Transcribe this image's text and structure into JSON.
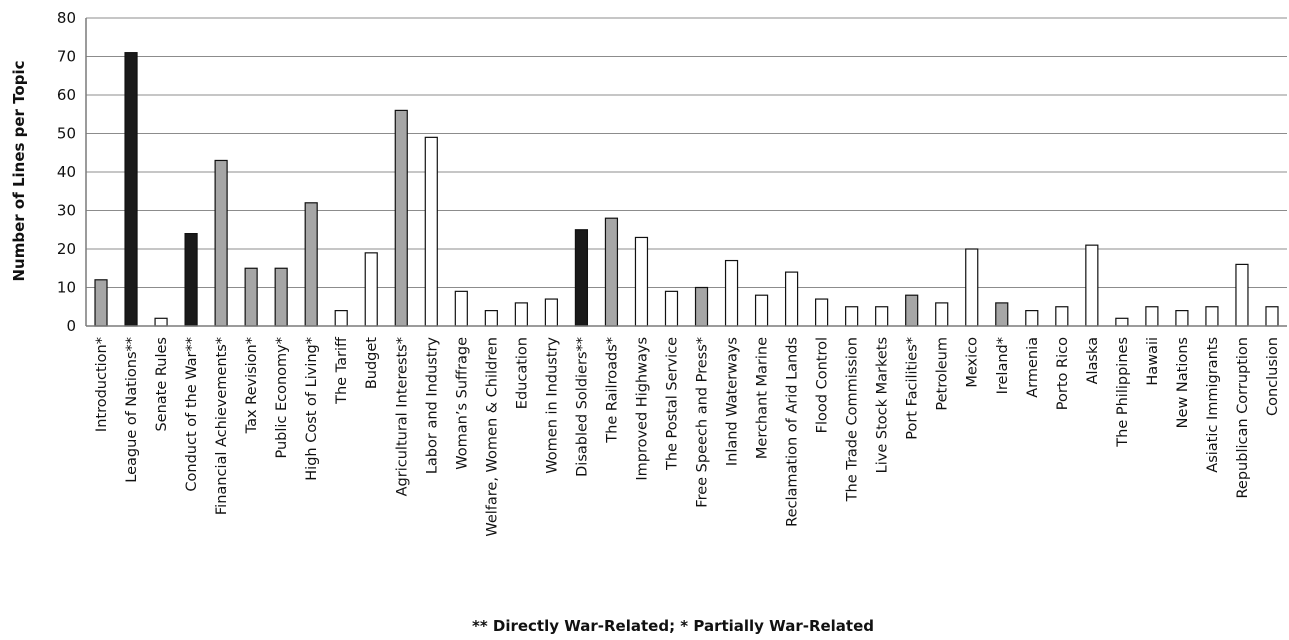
{
  "chart_data": {
    "type": "bar",
    "ylabel": "Number of Lines per Topic",
    "xlabel": "** Directly War-Related; * Partially War-Related",
    "ylim": [
      0,
      80
    ],
    "yticks": [
      0,
      10,
      20,
      30,
      40,
      50,
      60,
      70,
      80
    ],
    "grid": "horizontal",
    "legend": "none",
    "colors": {
      "directly": "#1a1a1a",
      "partially": "#a6a6a6",
      "not": "#ffffff",
      "outline": "#111111",
      "grid": "#8c8c8c"
    },
    "categories": [
      "Introduction*",
      "League of Nations**",
      "Senate Rules",
      "Conduct of the War**",
      "Financial Achievements*",
      "Tax Revision*",
      "Public Economy*",
      "High Cost of Living*",
      "The Tariff",
      "Budget",
      "Agricultural Interests*",
      "Labor and Industry",
      "Woman’s Suffrage",
      "Welfare, Women & Children",
      "Education",
      "Women in Industry",
      "Disabled Soldiers**",
      "The Railroads*",
      "Improved Highways",
      "The Postal Service",
      "Free Speech and Press*",
      "Inland Waterways",
      "Merchant Marine",
      "Reclamation of Arid Lands",
      "Flood Control",
      "The Trade Commission",
      "Live Stock Markets",
      "Port Facilities*",
      "Petroleum",
      "Mexico",
      "Ireland*",
      "Armenia",
      "Porto Rico",
      "Alaska",
      "The Philippines",
      "Hawaii",
      "New Nations",
      "Asiatic Immigrants",
      "Republican Corruption",
      "Conclusion"
    ],
    "values": [
      12,
      71,
      2,
      24,
      43,
      15,
      15,
      32,
      4,
      19,
      56,
      49,
      9,
      4,
      6,
      7,
      25,
      28,
      23,
      9,
      10,
      17,
      8,
      14,
      7,
      5,
      5,
      8,
      6,
      20,
      6,
      4,
      5,
      21,
      2,
      5,
      4,
      5,
      16,
      5
    ],
    "war_relation": [
      "partially",
      "directly",
      "not",
      "directly",
      "partially",
      "partially",
      "partially",
      "partially",
      "not",
      "not",
      "partially",
      "not",
      "not",
      "not",
      "not",
      "not",
      "directly",
      "partially",
      "not",
      "not",
      "partially",
      "not",
      "not",
      "not",
      "not",
      "not",
      "not",
      "partially",
      "not",
      "not",
      "partially",
      "not",
      "not",
      "not",
      "not",
      "not",
      "not",
      "not",
      "not",
      "not"
    ]
  }
}
